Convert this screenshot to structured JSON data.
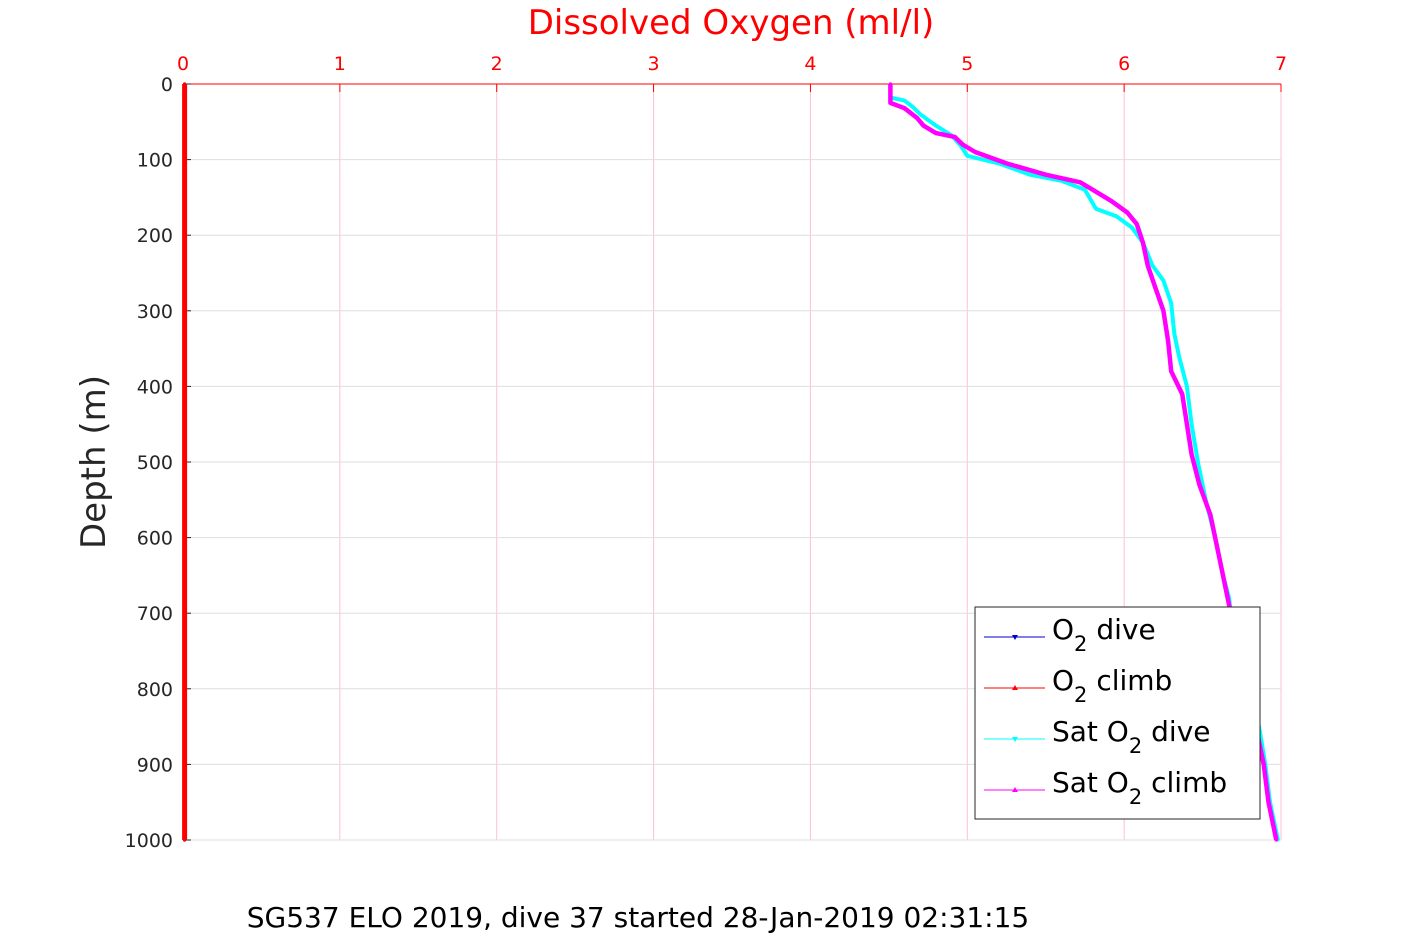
{
  "chart_data": {
    "type": "line",
    "title": "Dissolved Oxygen (ml/l)",
    "xlabel": "",
    "ylabel": "Depth (m)",
    "caption": "SG537 ELO 2019, dive 37 started 28-Jan-2019 02:31:15",
    "xlim": [
      0,
      7
    ],
    "ylim": [
      0,
      1000
    ],
    "y_reversed": true,
    "x_axis_position": "top",
    "xticks": [
      0,
      1,
      2,
      3,
      4,
      5,
      6,
      7
    ],
    "yticks": [
      0,
      100,
      200,
      300,
      400,
      500,
      600,
      700,
      800,
      900,
      1000
    ],
    "grid": true,
    "legend_placement": "bottom-right",
    "legend": [
      {
        "pre": "O",
        "sub": "2",
        "post": " dive",
        "color": "#0000cc",
        "marker": "down-triangle"
      },
      {
        "pre": "O",
        "sub": "2",
        "post": " climb",
        "color": "#ff0000",
        "marker": "up-triangle"
      },
      {
        "pre": "Sat O",
        "sub": "2",
        "post": " dive",
        "color": "#00ffff",
        "marker": "down-triangle"
      },
      {
        "pre": "Sat O",
        "sub": "2",
        "post": " climb",
        "color": "#ff00ff",
        "marker": "up-triangle"
      }
    ],
    "series": [
      {
        "name": "O2 dive",
        "color": "#0000cc",
        "points": [
          [
            0.01,
            0
          ],
          [
            0.01,
            1000
          ]
        ]
      },
      {
        "name": "O2 climb",
        "color": "#ff0000",
        "points": [
          [
            0.01,
            0
          ],
          [
            0.01,
            1000
          ]
        ]
      },
      {
        "name": "Sat O2 dive",
        "color": "#00ffff",
        "points": [
          [
            4.51,
            0
          ],
          [
            4.51,
            18
          ],
          [
            4.6,
            22
          ],
          [
            4.65,
            30
          ],
          [
            4.7,
            40
          ],
          [
            4.8,
            55
          ],
          [
            4.9,
            68
          ],
          [
            4.96,
            82
          ],
          [
            5.0,
            95
          ],
          [
            5.2,
            105
          ],
          [
            5.4,
            120
          ],
          [
            5.6,
            128
          ],
          [
            5.75,
            140
          ],
          [
            5.82,
            165
          ],
          [
            5.95,
            175
          ],
          [
            6.05,
            190
          ],
          [
            6.12,
            210
          ],
          [
            6.18,
            240
          ],
          [
            6.25,
            260
          ],
          [
            6.3,
            290
          ],
          [
            6.32,
            330
          ],
          [
            6.35,
            360
          ],
          [
            6.4,
            400
          ],
          [
            6.43,
            450
          ],
          [
            6.47,
            500
          ],
          [
            6.52,
            550
          ],
          [
            6.58,
            600
          ],
          [
            6.63,
            650
          ],
          [
            6.67,
            680
          ],
          [
            6.7,
            750
          ],
          [
            6.78,
            800
          ],
          [
            6.86,
            850
          ],
          [
            6.9,
            900
          ],
          [
            6.93,
            950
          ],
          [
            6.98,
            1000
          ]
        ]
      },
      {
        "name": "Sat O2 climb",
        "color": "#ff00ff",
        "points": [
          [
            4.51,
            0
          ],
          [
            4.51,
            25
          ],
          [
            4.6,
            32
          ],
          [
            4.68,
            45
          ],
          [
            4.72,
            55
          ],
          [
            4.8,
            65
          ],
          [
            4.92,
            70
          ],
          [
            4.97,
            80
          ],
          [
            5.05,
            90
          ],
          [
            5.25,
            105
          ],
          [
            5.5,
            120
          ],
          [
            5.72,
            130
          ],
          [
            5.8,
            140
          ],
          [
            5.92,
            155
          ],
          [
            6.02,
            170
          ],
          [
            6.08,
            185
          ],
          [
            6.12,
            210
          ],
          [
            6.15,
            240
          ],
          [
            6.2,
            270
          ],
          [
            6.25,
            300
          ],
          [
            6.28,
            340
          ],
          [
            6.3,
            380
          ],
          [
            6.37,
            410
          ],
          [
            6.4,
            450
          ],
          [
            6.43,
            490
          ],
          [
            6.48,
            530
          ],
          [
            6.55,
            570
          ],
          [
            6.6,
            620
          ],
          [
            6.65,
            670
          ],
          [
            6.7,
            720
          ],
          [
            6.77,
            800
          ],
          [
            6.84,
            850
          ],
          [
            6.89,
            900
          ],
          [
            6.92,
            950
          ],
          [
            6.97,
            1000
          ]
        ]
      }
    ]
  }
}
